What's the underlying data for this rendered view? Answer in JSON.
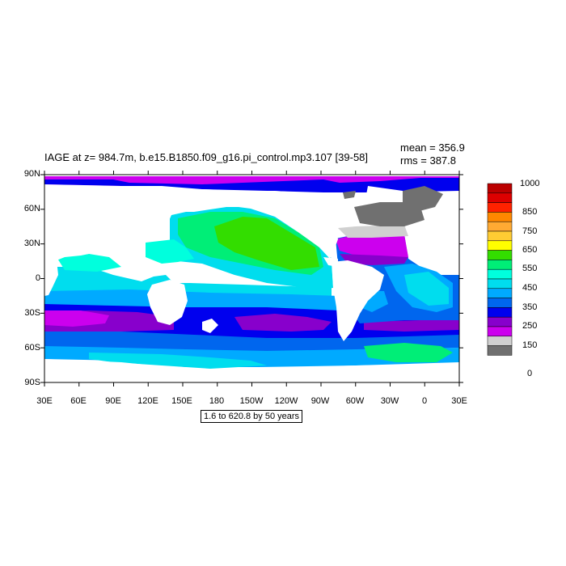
{
  "title": "IAGE at z= 984.7m, b.e15.B1850.f09_g16.pi_control.mp3.107 [39-58]",
  "stats": {
    "mean": "mean = 356.9",
    "rms": "rms = 387.8"
  },
  "note": "1.6 to 620.8 by 50 years",
  "lat_labels": [
    "90N",
    "60N",
    "30N",
    "0",
    "30S",
    "60S",
    "90S"
  ],
  "lon_labels": [
    "30E",
    "60E",
    "90E",
    "120E",
    "150E",
    "180",
    "150W",
    "120W",
    "90W",
    "60W",
    "30W",
    "0",
    "30E"
  ],
  "colorbar": {
    "labels": [
      "1000",
      "850",
      "750",
      "650",
      "550",
      "450",
      "350",
      "250",
      "150",
      "0"
    ],
    "colors": [
      "#bb0000",
      "#dd0000",
      "#ff2200",
      "#ff8800",
      "#ffaa33",
      "#ffcc33",
      "#ffff00",
      "#33dd00",
      "#00ee77",
      "#00ffdd",
      "#00ddee",
      "#00aaff",
      "#0066ee",
      "#0000ee",
      "#8800cc",
      "#cc00ee",
      "#d0d0d0",
      "#707070"
    ]
  },
  "legend": {
    "land": "#ffffff",
    "ice_mask": "#707070"
  }
}
